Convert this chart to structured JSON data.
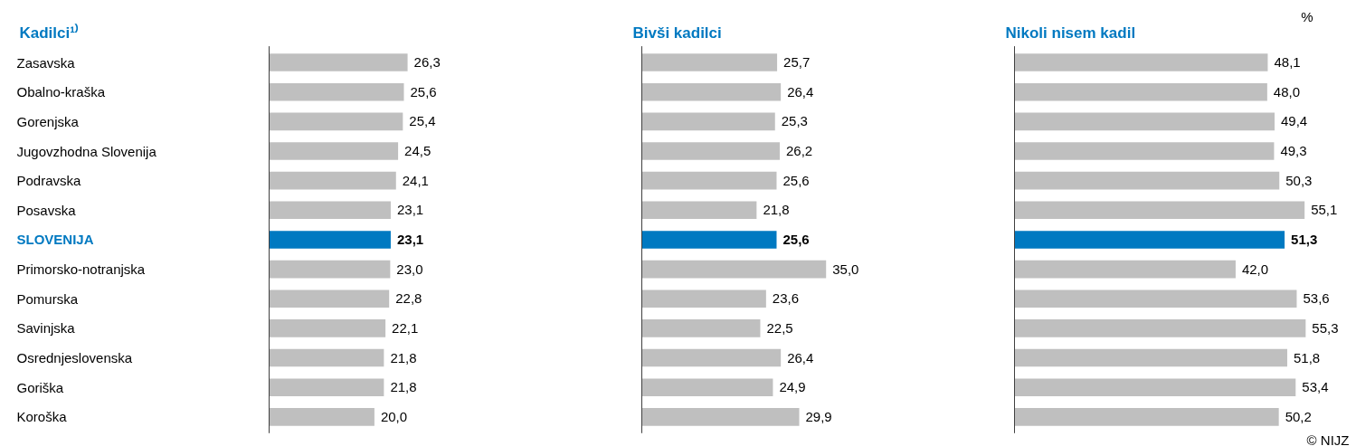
{
  "chart_data": [
    {
      "type": "bar",
      "orientation": "horizontal",
      "title": "Kadilci¹⁾",
      "color": "#bfbfbf",
      "categories": [
        "Zasavska",
        "Obalno-kraška",
        "Gorenjska",
        "Jugovzhodna Slovenija",
        "Podravska",
        "Posavska",
        "SLOVENIJA",
        "Primorsko-notranjska",
        "Pomurska",
        "Savinjska",
        "Osrednjeslovenska",
        "Goriška",
        "Koroška"
      ],
      "values": [
        26.3,
        25.6,
        25.4,
        24.5,
        24.1,
        23.1,
        23.1,
        23.0,
        22.8,
        22.1,
        21.8,
        21.8,
        20.0
      ],
      "value_labels": [
        "26,3",
        "25,6",
        "25,4",
        "24,5",
        "24,1",
        "23,1",
        "23,1",
        "23,0",
        "22,8",
        "22,1",
        "21,8",
        "21,8",
        "20,0"
      ],
      "colors": [
        "#bfbfbf",
        "#bfbfbf",
        "#bfbfbf",
        "#bfbfbf",
        "#bfbfbf",
        "#bfbfbf",
        "#0079c1",
        "#bfbfbf",
        "#bfbfbf",
        "#bfbfbf",
        "#bfbfbf",
        "#bfbfbf",
        "#bfbfbf"
      ]
    },
    {
      "type": "bar",
      "orientation": "horizontal",
      "title": "Bivši kadilci",
      "color": "#bfbfbf",
      "categories": [
        null,
        null,
        null,
        null,
        null,
        null,
        null,
        null,
        null,
        null,
        null,
        null,
        null
      ],
      "values": [
        25.7,
        26.4,
        25.3,
        26.2,
        25.6,
        21.8,
        25.6,
        35.0,
        23.6,
        22.5,
        26.4,
        24.9,
        29.9
      ],
      "value_labels": [
        "25,7",
        "26,4",
        "25,3",
        "26,2",
        "25,6",
        "21,8",
        "25,6",
        "35,0",
        "23,6",
        "22,5",
        "26,4",
        "24,9",
        "29,9"
      ],
      "colors": [
        "#bfbfbf",
        "#bfbfbf",
        "#bfbfbf",
        "#bfbfbf",
        "#bfbfbf",
        "#bfbfbf",
        "#0079c1",
        "#bfbfbf",
        "#bfbfbf",
        "#bfbfbf",
        "#bfbfbf",
        "#bfbfbf",
        "#bfbfbf"
      ]
    },
    {
      "type": "bar",
      "orientation": "horizontal",
      "title": "Nikoli nisem kadil",
      "color": "#bfbfbf",
      "categories": [
        null,
        null,
        null,
        null,
        null,
        null,
        null,
        null,
        null,
        null,
        null,
        null,
        null
      ],
      "values": [
        48.1,
        48.0,
        49.4,
        49.3,
        50.3,
        55.1,
        51.3,
        42.0,
        53.6,
        55.3,
        51.8,
        53.4,
        50.2
      ],
      "value_labels": [
        "48,1",
        "48,0",
        "49,4",
        "49,3",
        "50,3",
        "55,1",
        "51,3",
        "42,0",
        "53,6",
        "55,3",
        "51,8",
        "53,4",
        "50,2"
      ],
      "colors": [
        "#bfbfbf",
        "#bfbfbf",
        "#bfbfbf",
        "#bfbfbf",
        "#bfbfbf",
        "#bfbfbf",
        "#0079c1",
        "#bfbfbf",
        "#bfbfbf",
        "#bfbfbf",
        "#bfbfbf",
        "#bfbfbf",
        "#bfbfbf"
      ],
      "annotations": [
        "%",
        "© NIJZ"
      ]
    }
  ]
}
